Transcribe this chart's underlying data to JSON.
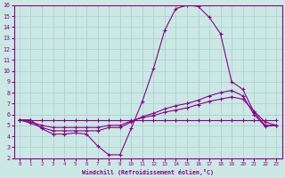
{
  "xlabel": "Windchill (Refroidissement éolien,°C)",
  "xlim": [
    -0.5,
    23.5
  ],
  "ylim": [
    2,
    16
  ],
  "xticks": [
    0,
    1,
    2,
    3,
    4,
    5,
    6,
    7,
    8,
    9,
    10,
    11,
    12,
    13,
    14,
    15,
    16,
    17,
    18,
    19,
    20,
    21,
    22,
    23
  ],
  "yticks": [
    2,
    3,
    4,
    5,
    6,
    7,
    8,
    9,
    10,
    11,
    12,
    13,
    14,
    15,
    16
  ],
  "bg_color": "#cce8e4",
  "line_color": "#880088",
  "grid_color": "#aad4d0",
  "line1_x": [
    0,
    1,
    2,
    3,
    4,
    5,
    6,
    7,
    8,
    9,
    10,
    11,
    12,
    13,
    14,
    15,
    16,
    17,
    18,
    19,
    20,
    21,
    22,
    23
  ],
  "line1_y": [
    5.5,
    5.5,
    4.7,
    4.2,
    4.2,
    4.3,
    4.2,
    3.1,
    2.3,
    2.3,
    4.7,
    7.2,
    10.2,
    13.7,
    15.7,
    16.0,
    15.9,
    14.9,
    13.4,
    9.0,
    8.3,
    6.2,
    5.0,
    5.0
  ],
  "line2_x": [
    0,
    1,
    2,
    3,
    4,
    5,
    6,
    7,
    8,
    9,
    10,
    11,
    12,
    13,
    14,
    15,
    16,
    17,
    18,
    19,
    20,
    21,
    22,
    23
  ],
  "line2_y": [
    5.5,
    5.2,
    4.8,
    4.5,
    4.5,
    4.5,
    4.5,
    4.5,
    4.8,
    4.8,
    5.3,
    5.8,
    6.1,
    6.5,
    6.8,
    7.0,
    7.3,
    7.7,
    8.0,
    8.2,
    7.7,
    6.0,
    4.9,
    5.0
  ],
  "line3_x": [
    0,
    1,
    2,
    3,
    4,
    5,
    6,
    7,
    8,
    9,
    10,
    11,
    12,
    13,
    14,
    15,
    16,
    17,
    18,
    19,
    20,
    21,
    22,
    23
  ],
  "line3_y": [
    5.5,
    5.3,
    5.0,
    4.8,
    4.8,
    4.8,
    4.8,
    4.8,
    5.0,
    5.0,
    5.4,
    5.7,
    5.9,
    6.2,
    6.4,
    6.6,
    6.9,
    7.2,
    7.4,
    7.6,
    7.4,
    6.3,
    5.3,
    5.0
  ],
  "line4_x": [
    0,
    1,
    2,
    3,
    4,
    5,
    6,
    7,
    8,
    9,
    10,
    11,
    12,
    13,
    14,
    15,
    16,
    17,
    18,
    19,
    20,
    21,
    22,
    23
  ],
  "line4_y": [
    5.5,
    5.5,
    5.5,
    5.5,
    5.5,
    5.5,
    5.5,
    5.5,
    5.5,
    5.5,
    5.5,
    5.5,
    5.5,
    5.5,
    5.5,
    5.5,
    5.5,
    5.5,
    5.5,
    5.5,
    5.5,
    5.5,
    5.5,
    5.5
  ]
}
